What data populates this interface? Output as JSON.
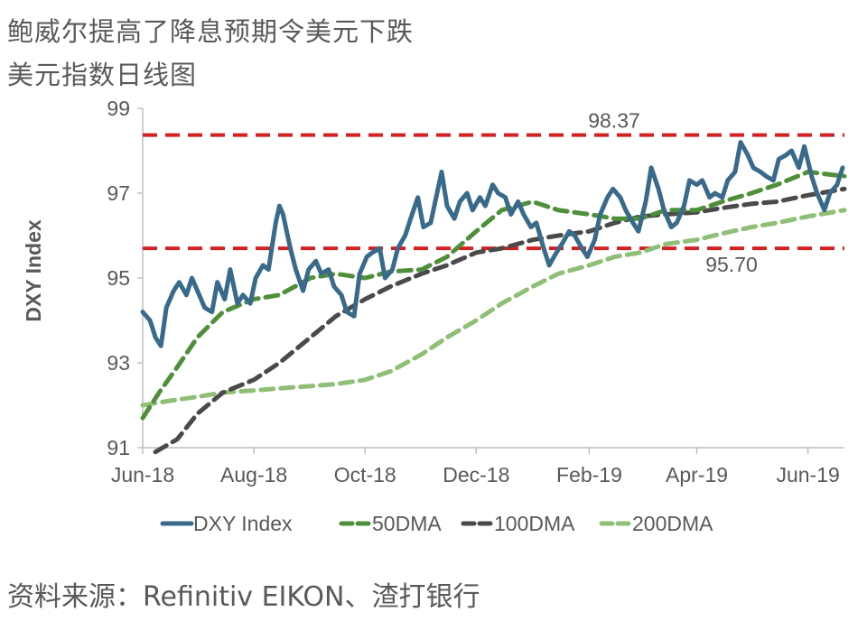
{
  "header": {
    "title": "鲍威尔提高了降息预期令美元下跌",
    "subtitle": "美元指数日线图"
  },
  "footer": {
    "source": "资料来源：Refinitiv EIKON、渣打银行"
  },
  "colors": {
    "dxy": "#3a6a8a",
    "dma50": "#4e8f3a",
    "dma100": "#4a4a4a",
    "dma200": "#8fbe76",
    "ref_line": "#d32020",
    "axis": "#bfbfbf",
    "text": "#595959"
  },
  "chart_data": {
    "type": "line",
    "ylabel": "DXY Index",
    "ylim": [
      91,
      99
    ],
    "yticks": [
      "99",
      "97",
      "95",
      "93",
      "91"
    ],
    "x_tick_labels": [
      "Jun-18",
      "Aug-18",
      "Oct-18",
      "Dec-18",
      "Feb-19",
      "Apr-19",
      "Jun-19"
    ],
    "x_range": [
      "2018-06-01",
      "2019-06-21"
    ],
    "x_ticks": [
      "2018-06-01",
      "2018-08-01",
      "2018-10-01",
      "2018-12-01",
      "2019-02-01",
      "2019-04-01",
      "2019-06-01"
    ],
    "legend_position": "bottom",
    "reference_lines": [
      {
        "value": 98.37,
        "label": "98.37"
      },
      {
        "value": 95.7,
        "label": "95.70"
      }
    ],
    "series": [
      {
        "name": "DXY Index",
        "style": "solid",
        "points": [
          [
            "2018-06-01",
            94.2
          ],
          [
            "2018-06-05",
            94.0
          ],
          [
            "2018-06-08",
            93.6
          ],
          [
            "2018-06-11",
            93.4
          ],
          [
            "2018-06-14",
            94.3
          ],
          [
            "2018-06-18",
            94.7
          ],
          [
            "2018-06-21",
            94.9
          ],
          [
            "2018-06-25",
            94.6
          ],
          [
            "2018-06-28",
            95.0
          ],
          [
            "2018-07-02",
            94.6
          ],
          [
            "2018-07-05",
            94.3
          ],
          [
            "2018-07-09",
            94.2
          ],
          [
            "2018-07-12",
            94.9
          ],
          [
            "2018-07-16",
            94.5
          ],
          [
            "2018-07-19",
            95.2
          ],
          [
            "2018-07-23",
            94.4
          ],
          [
            "2018-07-26",
            94.6
          ],
          [
            "2018-07-30",
            94.4
          ],
          [
            "2018-08-02",
            95.0
          ],
          [
            "2018-08-06",
            95.3
          ],
          [
            "2018-08-09",
            95.2
          ],
          [
            "2018-08-13",
            96.3
          ],
          [
            "2018-08-15",
            96.7
          ],
          [
            "2018-08-17",
            96.5
          ],
          [
            "2018-08-21",
            95.7
          ],
          [
            "2018-08-24",
            95.2
          ],
          [
            "2018-08-28",
            94.7
          ],
          [
            "2018-08-31",
            95.2
          ],
          [
            "2018-09-04",
            95.4
          ],
          [
            "2018-09-07",
            95.1
          ],
          [
            "2018-09-11",
            95.2
          ],
          [
            "2018-09-14",
            94.8
          ],
          [
            "2018-09-18",
            94.6
          ],
          [
            "2018-09-21",
            94.2
          ],
          [
            "2018-09-25",
            94.1
          ],
          [
            "2018-09-28",
            95.1
          ],
          [
            "2018-10-02",
            95.5
          ],
          [
            "2018-10-05",
            95.6
          ],
          [
            "2018-10-09",
            95.7
          ],
          [
            "2018-10-12",
            95.0
          ],
          [
            "2018-10-16",
            95.2
          ],
          [
            "2018-10-19",
            95.7
          ],
          [
            "2018-10-23",
            96.0
          ],
          [
            "2018-10-26",
            96.4
          ],
          [
            "2018-10-30",
            96.9
          ],
          [
            "2018-11-02",
            96.2
          ],
          [
            "2018-11-06",
            96.3
          ],
          [
            "2018-11-09",
            96.9
          ],
          [
            "2018-11-12",
            97.5
          ],
          [
            "2018-11-15",
            96.7
          ],
          [
            "2018-11-19",
            96.4
          ],
          [
            "2018-11-22",
            96.8
          ],
          [
            "2018-11-26",
            97.0
          ],
          [
            "2018-11-29",
            96.6
          ],
          [
            "2018-12-03",
            96.9
          ],
          [
            "2018-12-06",
            96.7
          ],
          [
            "2018-12-10",
            97.2
          ],
          [
            "2018-12-13",
            97.0
          ],
          [
            "2018-12-17",
            96.9
          ],
          [
            "2018-12-20",
            96.5
          ],
          [
            "2018-12-24",
            96.8
          ],
          [
            "2018-12-27",
            96.5
          ],
          [
            "2018-12-31",
            96.2
          ],
          [
            "2019-01-03",
            96.3
          ],
          [
            "2019-01-07",
            95.7
          ],
          [
            "2019-01-10",
            95.3
          ],
          [
            "2019-01-14",
            95.6
          ],
          [
            "2019-01-17",
            95.8
          ],
          [
            "2019-01-21",
            96.1
          ],
          [
            "2019-01-24",
            96.0
          ],
          [
            "2019-01-28",
            95.7
          ],
          [
            "2019-01-31",
            95.5
          ],
          [
            "2019-02-04",
            95.9
          ],
          [
            "2019-02-07",
            96.5
          ],
          [
            "2019-02-11",
            96.9
          ],
          [
            "2019-02-14",
            97.1
          ],
          [
            "2019-02-18",
            96.9
          ],
          [
            "2019-02-21",
            96.6
          ],
          [
            "2019-02-25",
            96.3
          ],
          [
            "2019-02-28",
            96.1
          ],
          [
            "2019-03-04",
            96.8
          ],
          [
            "2019-03-07",
            97.6
          ],
          [
            "2019-03-11",
            97.1
          ],
          [
            "2019-03-14",
            96.6
          ],
          [
            "2019-03-18",
            96.2
          ],
          [
            "2019-03-21",
            96.3
          ],
          [
            "2019-03-25",
            96.7
          ],
          [
            "2019-03-28",
            97.3
          ],
          [
            "2019-04-01",
            97.2
          ],
          [
            "2019-04-04",
            97.3
          ],
          [
            "2019-04-08",
            96.9
          ],
          [
            "2019-04-11",
            97.0
          ],
          [
            "2019-04-15",
            96.9
          ],
          [
            "2019-04-18",
            97.3
          ],
          [
            "2019-04-22",
            97.5
          ],
          [
            "2019-04-25",
            98.2
          ],
          [
            "2019-04-29",
            97.9
          ],
          [
            "2019-05-02",
            97.6
          ],
          [
            "2019-05-06",
            97.5
          ],
          [
            "2019-05-09",
            97.4
          ],
          [
            "2019-05-13",
            97.3
          ],
          [
            "2019-05-16",
            97.8
          ],
          [
            "2019-05-20",
            97.9
          ],
          [
            "2019-05-23",
            98.0
          ],
          [
            "2019-05-27",
            97.6
          ],
          [
            "2019-05-30",
            98.1
          ],
          [
            "2019-06-03",
            97.4
          ],
          [
            "2019-06-06",
            97.0
          ],
          [
            "2019-06-10",
            96.6
          ],
          [
            "2019-06-13",
            97.0
          ],
          [
            "2019-06-17",
            97.2
          ],
          [
            "2019-06-20",
            97.6
          ]
        ]
      },
      {
        "name": "50DMA",
        "style": "dashed",
        "points": [
          [
            "2018-06-01",
            91.7
          ],
          [
            "2018-06-10",
            92.3
          ],
          [
            "2018-06-20",
            92.9
          ],
          [
            "2018-07-01",
            93.6
          ],
          [
            "2018-07-15",
            94.2
          ],
          [
            "2018-08-01",
            94.5
          ],
          [
            "2018-08-15",
            94.6
          ],
          [
            "2018-09-01",
            95.0
          ],
          [
            "2018-09-15",
            95.1
          ],
          [
            "2018-10-01",
            95.0
          ],
          [
            "2018-10-15",
            95.15
          ],
          [
            "2018-11-01",
            95.2
          ],
          [
            "2018-11-15",
            95.5
          ],
          [
            "2018-12-01",
            96.1
          ],
          [
            "2018-12-15",
            96.6
          ],
          [
            "2019-01-01",
            96.8
          ],
          [
            "2019-01-15",
            96.6
          ],
          [
            "2019-02-01",
            96.5
          ],
          [
            "2019-02-15",
            96.4
          ],
          [
            "2019-03-01",
            96.4
          ],
          [
            "2019-03-15",
            96.6
          ],
          [
            "2019-04-01",
            96.6
          ],
          [
            "2019-04-15",
            96.8
          ],
          [
            "2019-05-01",
            97.0
          ],
          [
            "2019-05-15",
            97.2
          ],
          [
            "2019-06-01",
            97.5
          ],
          [
            "2019-06-21",
            97.4
          ]
        ]
      },
      {
        "name": "100DMA",
        "style": "dashed",
        "points": [
          [
            "2018-06-08",
            90.9
          ],
          [
            "2018-06-20",
            91.2
          ],
          [
            "2018-07-01",
            91.8
          ],
          [
            "2018-07-15",
            92.3
          ],
          [
            "2018-08-01",
            92.6
          ],
          [
            "2018-08-15",
            93.0
          ],
          [
            "2018-09-01",
            93.6
          ],
          [
            "2018-09-15",
            94.1
          ],
          [
            "2018-10-01",
            94.5
          ],
          [
            "2018-10-15",
            94.8
          ],
          [
            "2018-11-01",
            95.1
          ],
          [
            "2018-11-15",
            95.3
          ],
          [
            "2018-12-01",
            95.6
          ],
          [
            "2018-12-15",
            95.7
          ],
          [
            "2019-01-01",
            95.9
          ],
          [
            "2019-01-15",
            96.0
          ],
          [
            "2019-02-01",
            96.1
          ],
          [
            "2019-02-15",
            96.3
          ],
          [
            "2019-03-01",
            96.45
          ],
          [
            "2019-03-15",
            96.5
          ],
          [
            "2019-04-01",
            96.55
          ],
          [
            "2019-04-15",
            96.65
          ],
          [
            "2019-05-01",
            96.75
          ],
          [
            "2019-05-15",
            96.8
          ],
          [
            "2019-06-01",
            96.95
          ],
          [
            "2019-06-21",
            97.1
          ]
        ]
      },
      {
        "name": "200DMA",
        "style": "dashed",
        "points": [
          [
            "2018-06-01",
            92.0
          ],
          [
            "2018-06-15",
            92.1
          ],
          [
            "2018-07-01",
            92.2
          ],
          [
            "2018-07-15",
            92.3
          ],
          [
            "2018-08-01",
            92.35
          ],
          [
            "2018-08-15",
            92.4
          ],
          [
            "2018-09-01",
            92.45
          ],
          [
            "2018-09-15",
            92.5
          ],
          [
            "2018-10-01",
            92.6
          ],
          [
            "2018-10-15",
            92.8
          ],
          [
            "2018-11-01",
            93.2
          ],
          [
            "2018-11-15",
            93.6
          ],
          [
            "2018-12-01",
            94.0
          ],
          [
            "2018-12-15",
            94.4
          ],
          [
            "2019-01-01",
            94.8
          ],
          [
            "2019-01-15",
            95.1
          ],
          [
            "2019-02-01",
            95.3
          ],
          [
            "2019-02-15",
            95.5
          ],
          [
            "2019-03-01",
            95.6
          ],
          [
            "2019-03-15",
            95.8
          ],
          [
            "2019-04-01",
            95.9
          ],
          [
            "2019-04-15",
            96.05
          ],
          [
            "2019-05-01",
            96.2
          ],
          [
            "2019-05-15",
            96.3
          ],
          [
            "2019-06-01",
            96.45
          ],
          [
            "2019-06-21",
            96.6
          ]
        ]
      }
    ]
  }
}
